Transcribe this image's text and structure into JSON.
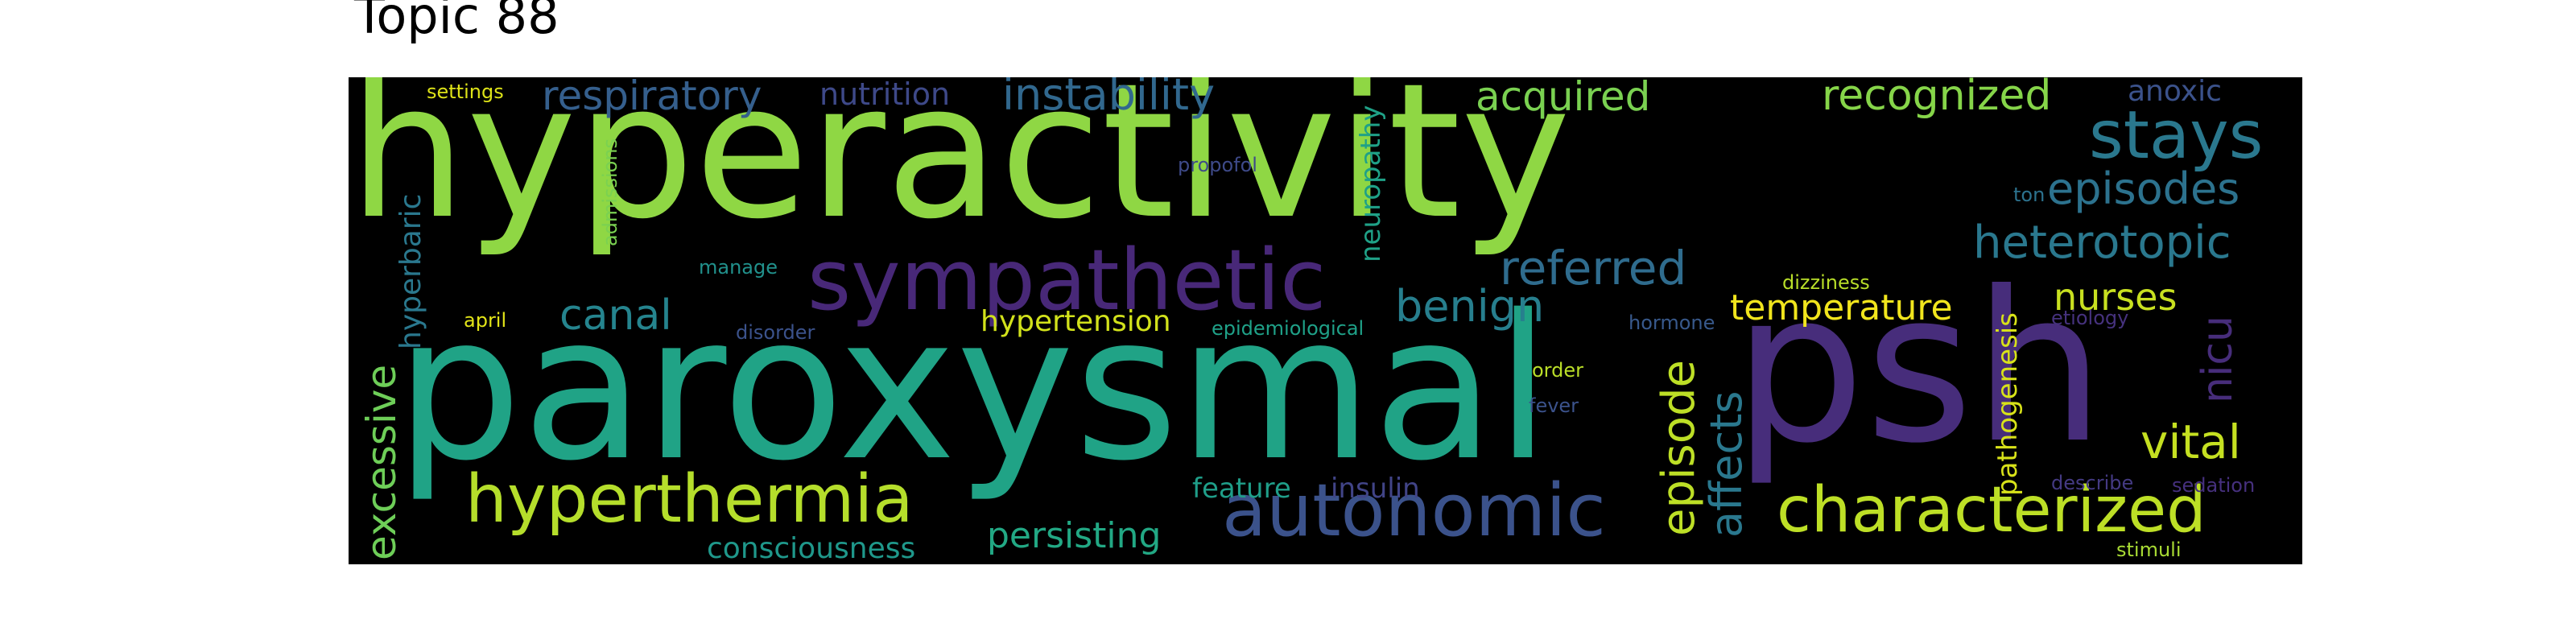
{
  "title": "Topic 88",
  "words": [
    {
      "text": "hyperactivity",
      "color": "#8fd744",
      "orientation": "horizontal"
    },
    {
      "text": "paroxysmal",
      "color": "#20a386",
      "orientation": "horizontal"
    },
    {
      "text": "psh",
      "color": "#472d7b",
      "orientation": "horizontal"
    },
    {
      "text": "sympathetic",
      "color": "#482878",
      "orientation": "horizontal"
    },
    {
      "text": "autonomic",
      "color": "#3b528b",
      "orientation": "horizontal"
    },
    {
      "text": "hyperthermia",
      "color": "#b5de2b",
      "orientation": "horizontal"
    },
    {
      "text": "characterized",
      "color": "#bddf26",
      "orientation": "horizontal"
    },
    {
      "text": "stays",
      "color": "#2a788e",
      "orientation": "horizontal"
    },
    {
      "text": "respiratory",
      "color": "#355f8d",
      "orientation": "horizontal"
    },
    {
      "text": "instability",
      "color": "#31688e",
      "orientation": "horizontal"
    },
    {
      "text": "nutrition",
      "color": "#3e4989",
      "orientation": "horizontal"
    },
    {
      "text": "acquired",
      "color": "#7ad151",
      "orientation": "horizontal"
    },
    {
      "text": "recognized",
      "color": "#86d549",
      "orientation": "horizontal"
    },
    {
      "text": "anoxic",
      "color": "#3b528b",
      "orientation": "horizontal"
    },
    {
      "text": "episodes",
      "color": "#2c728e",
      "orientation": "horizontal"
    },
    {
      "text": "heterotopic",
      "color": "#2a788e",
      "orientation": "horizontal"
    },
    {
      "text": "referred",
      "color": "#2f6c8e",
      "orientation": "horizontal"
    },
    {
      "text": "benign",
      "color": "#277f8e",
      "orientation": "horizontal"
    },
    {
      "text": "canal",
      "color": "#25848e",
      "orientation": "horizontal"
    },
    {
      "text": "temperature",
      "color": "#f1e51d",
      "orientation": "horizontal"
    },
    {
      "text": "nurses",
      "color": "#c8e020",
      "orientation": "horizontal"
    },
    {
      "text": "vital",
      "color": "#c5e021",
      "orientation": "horizontal"
    },
    {
      "text": "persisting",
      "color": "#22a884",
      "orientation": "horizontal"
    },
    {
      "text": "consciousness",
      "color": "#1f988b",
      "orientation": "horizontal"
    },
    {
      "text": "feature",
      "color": "#1f9e89",
      "orientation": "horizontal"
    },
    {
      "text": "insulin",
      "color": "#414487",
      "orientation": "horizontal"
    },
    {
      "text": "hypertension",
      "color": "#d2e21b",
      "orientation": "horizontal"
    },
    {
      "text": "epidemiological",
      "color": "#1fa188",
      "orientation": "horizontal"
    },
    {
      "text": "settings",
      "color": "#dde318",
      "orientation": "horizontal"
    },
    {
      "text": "propofol",
      "color": "#3e4a89",
      "orientation": "horizontal"
    },
    {
      "text": "ton",
      "color": "#2c728e",
      "orientation": "horizontal"
    },
    {
      "text": "manage",
      "color": "#21918c",
      "orientation": "horizontal"
    },
    {
      "text": "april",
      "color": "#e2e418",
      "orientation": "horizontal"
    },
    {
      "text": "disorder",
      "color": "#3b528b",
      "orientation": "horizontal"
    },
    {
      "text": "dizziness",
      "color": "#b8de29",
      "orientation": "horizontal"
    },
    {
      "text": "hormone",
      "color": "#38598c",
      "orientation": "horizontal"
    },
    {
      "text": "etiology",
      "color": "#46327e",
      "orientation": "horizontal"
    },
    {
      "text": "order",
      "color": "#bade28",
      "orientation": "horizontal"
    },
    {
      "text": "fever",
      "color": "#3b528b",
      "orientation": "horizontal"
    },
    {
      "text": "describe",
      "color": "#443a83",
      "orientation": "horizontal"
    },
    {
      "text": "sedation",
      "color": "#46307e",
      "orientation": "horizontal"
    },
    {
      "text": "stimuli",
      "color": "#a8db34",
      "orientation": "horizontal"
    },
    {
      "text": "excessive",
      "color": "#6ece58",
      "orientation": "vertical"
    },
    {
      "text": "hyperbaric",
      "color": "#2a788e",
      "orientation": "vertical"
    },
    {
      "text": "admissions",
      "color": "#7ad151",
      "orientation": "vertical"
    },
    {
      "text": "neuropathy",
      "color": "#1fa187",
      "orientation": "vertical"
    },
    {
      "text": "episode",
      "color": "#bddf26",
      "orientation": "vertical"
    },
    {
      "text": "affects",
      "color": "#2a788e",
      "orientation": "vertical"
    },
    {
      "text": "nicu",
      "color": "#472d7b",
      "orientation": "vertical"
    },
    {
      "text": "pathogenesis",
      "color": "#d8e219",
      "orientation": "vertical"
    }
  ]
}
